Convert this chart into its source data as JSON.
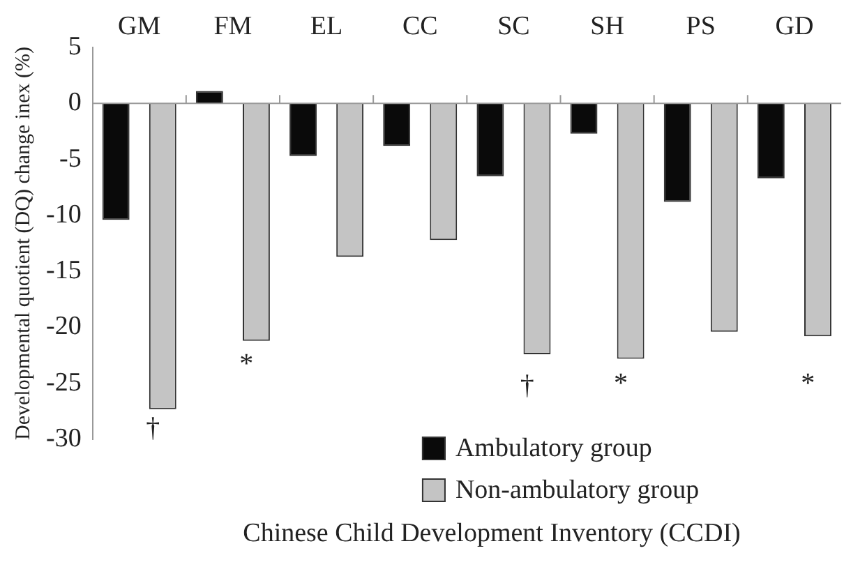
{
  "chart_data": {
    "type": "bar",
    "xlabel": "Chinese Child Development Inventory (CCDI)",
    "ylabel": "Developmental quotient (DQ) change inex (%)",
    "categories": [
      "GM",
      "FM",
      "EL",
      "CC",
      "SC",
      "SH",
      "PS",
      "GD"
    ],
    "series": [
      {
        "name": "Ambulatory group",
        "color": "#0a0a0a",
        "values": [
          -10.4,
          1.1,
          -4.7,
          -3.8,
          -6.5,
          -2.7,
          -8.8,
          -6.7
        ]
      },
      {
        "name": "Non-ambulatory group",
        "color": "#c4c4c4",
        "values": [
          -27.3,
          -21.2,
          -13.7,
          -12.2,
          -22.4,
          -22.8,
          -20.4,
          -20.8
        ]
      }
    ],
    "ylim": [
      -30,
      5
    ],
    "yticks": [
      -30,
      -25,
      -20,
      -15,
      -10,
      -5,
      0,
      5
    ],
    "grid": false,
    "legend": "bottom right",
    "annotations": [
      "†",
      "*",
      "†",
      "*",
      "*"
    ]
  }
}
